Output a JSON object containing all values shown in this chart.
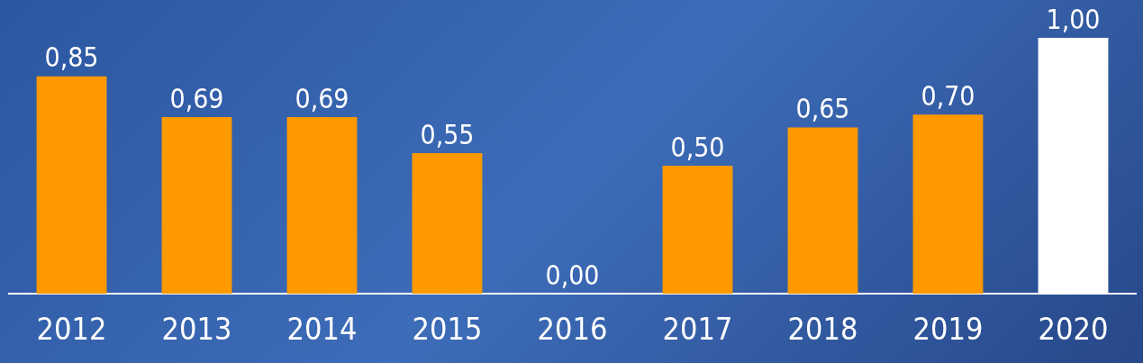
{
  "chart_data": {
    "type": "bar",
    "categories": [
      "2012",
      "2013",
      "2014",
      "2015",
      "2016",
      "2017",
      "2018",
      "2019",
      "2020"
    ],
    "values": [
      0.85,
      0.69,
      0.69,
      0.55,
      0,
      0.5,
      0.65,
      0.7,
      1
    ],
    "colors": [
      "#ff9900",
      "#ff9900",
      "#ff9900",
      "#ff9900",
      "#ff9900",
      "#ff9900",
      "#ff9900",
      "#ff9900",
      "#ffffff"
    ],
    "value_labels": [
      "0,85",
      "0,69",
      "0,69",
      "0,55",
      "0,00",
      "0,50",
      "0,65",
      "0,70",
      "1,00"
    ],
    "tick_labels": "x",
    "grid": false,
    "legend": false
  }
}
